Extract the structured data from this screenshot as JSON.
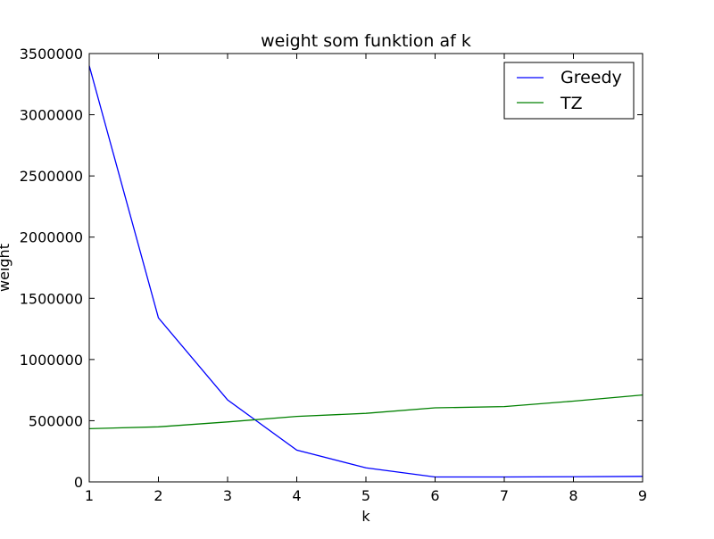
{
  "chart_data": {
    "type": "line",
    "title": "weight som funktion af k",
    "xlabel": "k",
    "ylabel": "weight",
    "x": [
      1,
      2,
      3,
      4,
      5,
      6,
      7,
      8,
      9
    ],
    "xlim": [
      1,
      9
    ],
    "ylim": [
      0,
      3500000
    ],
    "xticks": [
      "1",
      "2",
      "3",
      "4",
      "5",
      "6",
      "7",
      "8",
      "9"
    ],
    "yticks": [
      "0",
      "500000",
      "1000000",
      "1500000",
      "2000000",
      "2500000",
      "3000000",
      "3500000"
    ],
    "grid": false,
    "legend_position": "top-right",
    "series": [
      {
        "name": "Greedy",
        "color": "#0000ff",
        "values": [
          3400000,
          1340000,
          670000,
          260000,
          115000,
          40000,
          40000,
          42000,
          45000
        ]
      },
      {
        "name": "TZ",
        "color": "#008000",
        "values": [
          435000,
          450000,
          490000,
          535000,
          560000,
          605000,
          615000,
          660000,
          710000
        ]
      }
    ]
  }
}
